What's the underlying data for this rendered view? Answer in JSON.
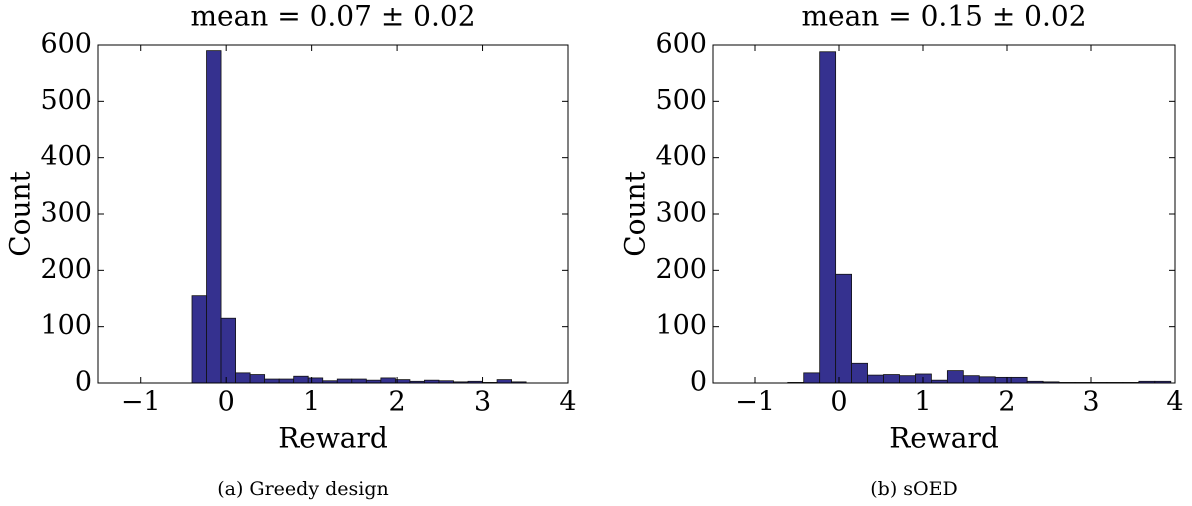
{
  "chart_data": [
    {
      "type": "histogram",
      "title": "mean = 0.07 ± 0.02",
      "xlabel": "Reward",
      "ylabel": "Count",
      "caption": "(a) Greedy design",
      "color": "#35318f",
      "bins": [
        -0.4,
        -0.23,
        -0.06,
        0.11,
        0.28,
        0.45,
        0.62,
        0.79,
        0.96,
        1.13,
        1.3,
        1.47,
        1.64,
        1.81,
        1.98,
        2.15,
        2.32,
        2.49,
        2.66,
        2.83,
        3.0,
        3.17,
        3.34,
        3.51
      ],
      "values": [
        155,
        590,
        115,
        18,
        15,
        7,
        7,
        12,
        9,
        4,
        7,
        7,
        5,
        9,
        6,
        3,
        5,
        4,
        2,
        3,
        1,
        6,
        2
      ],
      "xlim": [
        -1.5,
        4
      ],
      "xticks": [
        {
          "value": -1,
          "label": "−1"
        },
        0,
        1,
        2,
        3,
        4
      ],
      "ylim": [
        0,
        600
      ],
      "yticks": [
        0,
        100,
        200,
        300,
        400,
        500,
        600
      ]
    },
    {
      "type": "histogram",
      "title": "mean = 0.15 ± 0.02",
      "xlabel": "Reward",
      "ylabel": "Count",
      "caption": "(b) sOED",
      "color": "#35318f",
      "bins": [
        -0.8,
        -0.61,
        -0.42,
        -0.23,
        -0.04,
        0.15,
        0.34,
        0.53,
        0.72,
        0.91,
        1.1,
        1.29,
        1.48,
        1.67,
        1.86,
        2.05,
        2.24,
        2.43,
        2.62,
        2.81,
        3.0,
        3.19,
        3.38,
        3.57,
        3.76,
        3.95
      ],
      "values": [
        0,
        1,
        18,
        588,
        193,
        35,
        14,
        15,
        13,
        16,
        5,
        22,
        13,
        11,
        10,
        10,
        3,
        2,
        1,
        1,
        1,
        1,
        1,
        3,
        3
      ],
      "xlim": [
        -1.5,
        4
      ],
      "xticks": [
        {
          "value": -1,
          "label": "−1"
        },
        0,
        1,
        2,
        3,
        4
      ],
      "ylim": [
        0,
        600
      ],
      "yticks": [
        0,
        100,
        200,
        300,
        400,
        500,
        600
      ]
    }
  ]
}
